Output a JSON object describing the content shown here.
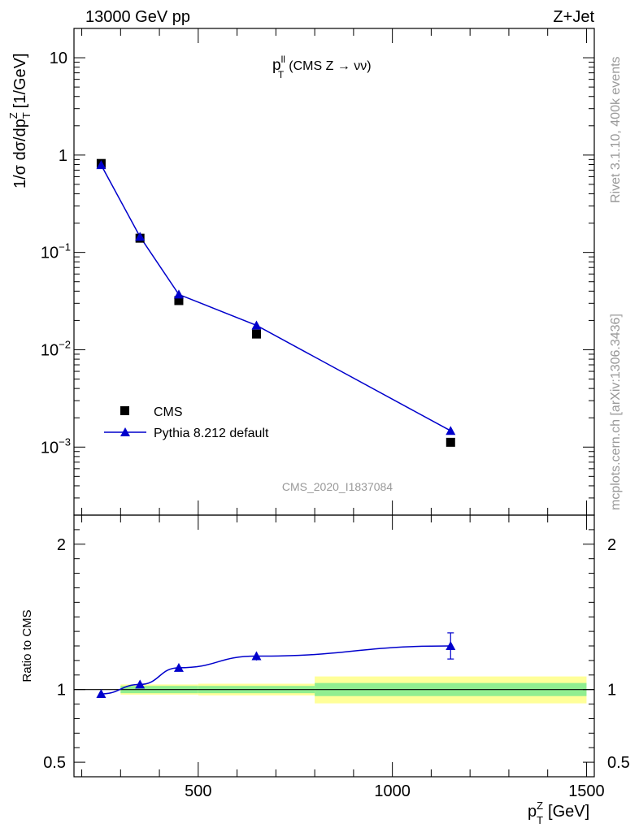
{
  "header": {
    "left": "13000 GeV pp",
    "right": "Z+Jet"
  },
  "side_labels": {
    "rivet": "Rivet 3.1.10,  400k events",
    "mcplots": "mcplots.cern.ch [arXiv:1306.3436]"
  },
  "plot_title": {
    "main": "p",
    "sup": "ll",
    "sub": "T",
    "rest": "(CMS Z → νν)"
  },
  "watermark": "CMS_2020_I1837084",
  "colors": {
    "cms": "#000000",
    "pythia": "#0000cc",
    "band_inner": "#90ee90",
    "band_outer": "#ffff99"
  },
  "chart_data": [
    {
      "type": "scatter",
      "panel": "main",
      "ylabel": "1/σ dσ/dp",
      "ylabel_sup": "Z",
      "ylabel_sub": "T",
      "ylabel_unit": "[1/GeV]",
      "yscale": "log",
      "ylim": [
        0.0002,
        20
      ],
      "xlim": [
        180,
        1520
      ],
      "y_ticks": [
        {
          "value": 10,
          "label": "10"
        },
        {
          "value": 1,
          "label": "1"
        },
        {
          "value": 0.1,
          "label": "10",
          "exp": "−1"
        },
        {
          "value": 0.01,
          "label": "10",
          "exp": "−2"
        },
        {
          "value": 0.001,
          "label": "10",
          "exp": "−3"
        }
      ],
      "legend": {
        "position": "bottom-left",
        "entries": [
          "CMS",
          "Pythia 8.212 default"
        ]
      },
      "series": [
        {
          "name": "CMS",
          "x": [
            250,
            350,
            450,
            650,
            1150
          ],
          "y": [
            0.82,
            0.14,
            0.032,
            0.0145,
            0.00112
          ]
        },
        {
          "name": "Pythia 8.212 default",
          "x": [
            250,
            350,
            450,
            650,
            1150
          ],
          "y": [
            0.79,
            0.145,
            0.037,
            0.0178,
            0.00147
          ],
          "yerr": [
            0.01,
            0.003,
            0.001,
            0.0005,
            0.0001
          ]
        }
      ]
    },
    {
      "type": "line",
      "panel": "ratio",
      "ylabel": "Ratio to CMS",
      "ylim": [
        0.4,
        2.2
      ],
      "xlim": [
        180,
        1520
      ],
      "xlabel": "p",
      "xlabel_sup": "Z",
      "xlabel_sub": "T",
      "xlabel_unit": "[GeV]",
      "x_ticks": [
        {
          "value": 500,
          "label": "500"
        },
        {
          "value": 1000,
          "label": "1000"
        },
        {
          "value": 1500,
          "label": "1500"
        }
      ],
      "y_ticks": [
        {
          "value": 0.5,
          "label": "0.5"
        },
        {
          "value": 1,
          "label": "1"
        },
        {
          "value": 2,
          "label": "2"
        }
      ],
      "bands": [
        {
          "x": [
            300,
            500
          ],
          "inner": [
            0.975,
            1.025
          ],
          "outer": [
            0.965,
            1.035
          ]
        },
        {
          "x": [
            500,
            800
          ],
          "inner": [
            0.975,
            1.025
          ],
          "outer": [
            0.96,
            1.04
          ]
        },
        {
          "x": [
            800,
            1500
          ],
          "inner": [
            0.955,
            1.045
          ],
          "outer": [
            0.905,
            1.09
          ]
        }
      ],
      "series": [
        {
          "name": "Pythia 8.212 default",
          "x": [
            250,
            350,
            450,
            650,
            1150
          ],
          "y": [
            0.97,
            1.035,
            1.15,
            1.23,
            1.3
          ],
          "yerr": [
            0.005,
            0.01,
            0.015,
            0.03,
            0.09
          ]
        }
      ]
    }
  ]
}
